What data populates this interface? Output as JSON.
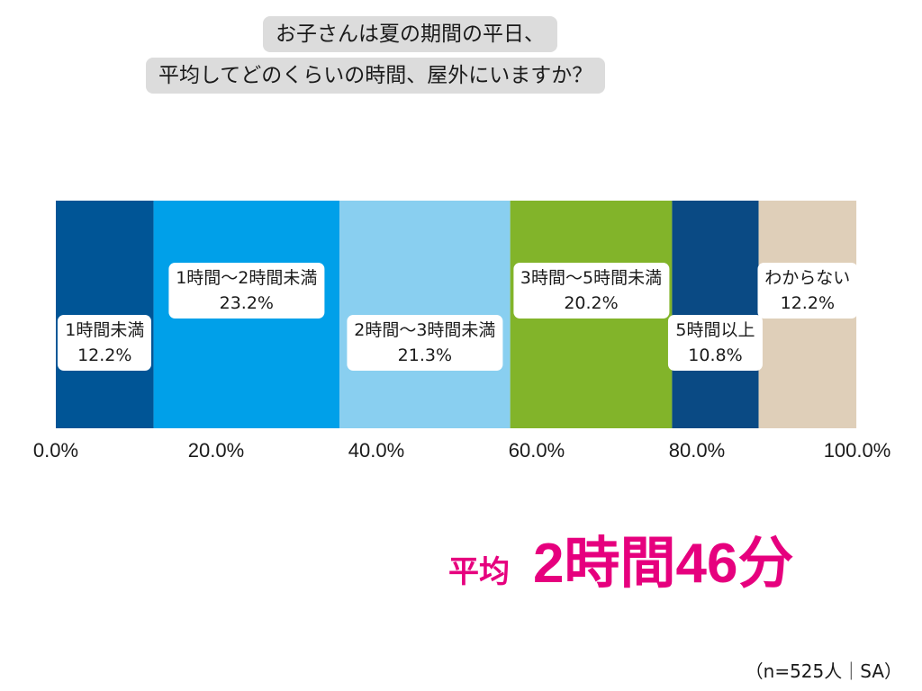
{
  "title": {
    "line1": "お子さんは夏の期間の平日、",
    "line2": "平均してどのくらいの時間、屋外にいますか？"
  },
  "chart_data": {
    "type": "bar",
    "orientation": "horizontal-stacked-100",
    "segments": [
      {
        "label": "1時間未満",
        "value": 12.2,
        "value_label": "12.2%",
        "color": "#005596"
      },
      {
        "label": "1時間〜2時間未満",
        "value": 23.2,
        "value_label": "23.2%",
        "color": "#00a0e9"
      },
      {
        "label": "2時間〜3時間未満",
        "value": 21.3,
        "value_label": "21.3%",
        "color": "#89cff0"
      },
      {
        "label": "3時間〜5時間未満",
        "value": 20.2,
        "value_label": "20.2%",
        "color": "#82b42a"
      },
      {
        "label": "5時間以上",
        "value": 10.8,
        "value_label": "10.8%",
        "color": "#0a4a84"
      },
      {
        "label": "わからない",
        "value": 12.2,
        "value_label": "12.2%",
        "color": "#dfcfb9"
      }
    ],
    "xlim": [
      0,
      100
    ],
    "x_ticks": [
      "0.0%",
      "20.0%",
      "40.0%",
      "60.0%",
      "80.0%",
      "100.0%"
    ],
    "grid": false
  },
  "average": {
    "label": "平均",
    "value": "2時間46分",
    "color": "#e6007e"
  },
  "note": "（n=525人｜SA）"
}
